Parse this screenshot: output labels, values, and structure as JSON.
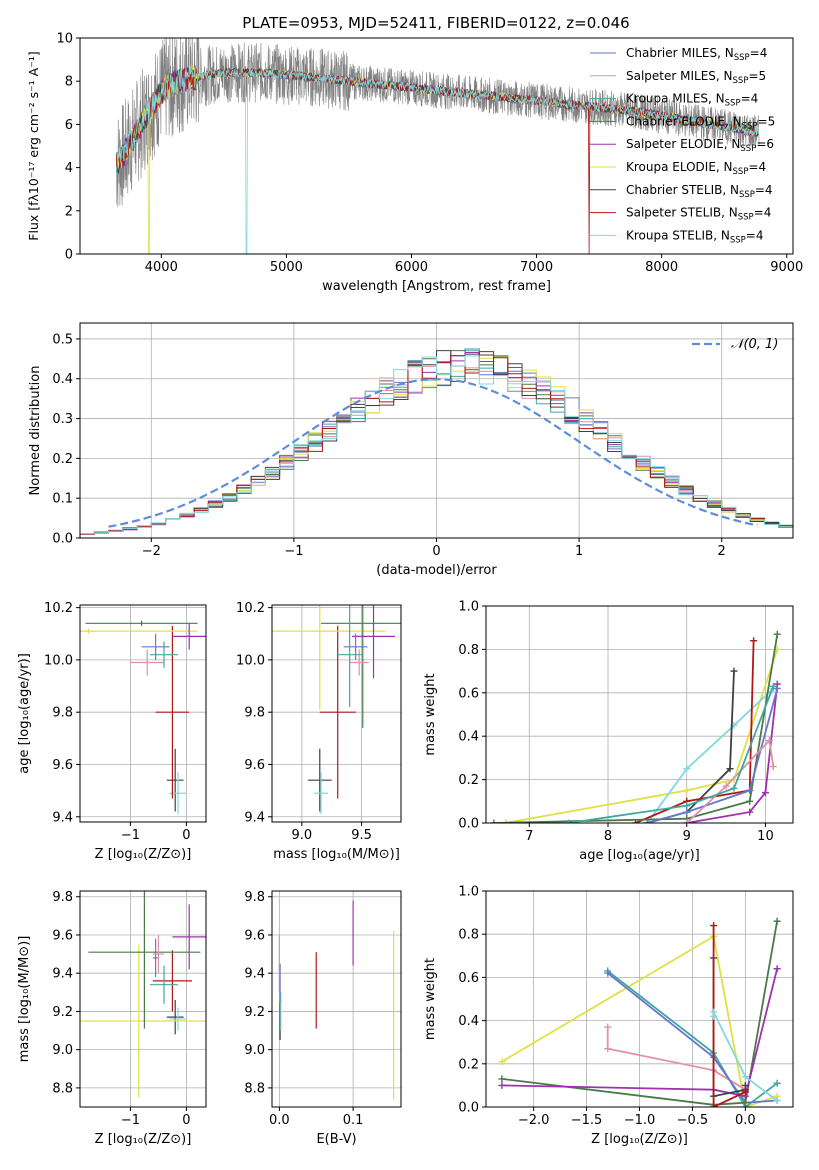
{
  "figure": {
    "title": "PLATE=0953, MJD=52411, FIBERID=0122, z=0.046",
    "model_colors": [
      "#6677cc",
      "#e090a8",
      "#40a8a0",
      "#4a7a4a",
      "#a030b0",
      "#e0e040",
      "#404040",
      "#b01818",
      "#80d8e0"
    ],
    "marker_colors": [
      "#808080",
      "#6699dd",
      "#e07820",
      "#e080b0",
      "#c8e050",
      "#ee8888"
    ]
  },
  "chart_data": [
    {
      "id": "spectrum",
      "type": "line",
      "title": "PLATE=0953, MJD=52411, FIBERID=0122, z=0.046",
      "xlabel": "wavelength [Angstrom, rest frame]",
      "ylabel": "Flux [fλ10⁻¹⁷ erg cm⁻² s⁻¹ A⁻¹]",
      "xlim": [
        3350,
        9050
      ],
      "ylim": [
        0,
        10
      ],
      "xticks": [
        4000,
        5000,
        6000,
        7000,
        8000,
        9000
      ],
      "yticks": [
        0,
        2,
        4,
        6,
        8,
        10
      ],
      "grid": false,
      "legend_placement": "top-right",
      "legend": [
        {
          "label": "Chabrier MILES, N",
          "sub": "SSP",
          "tail": "=4",
          "color": "#6677cc"
        },
        {
          "label": "Salpeter MILES, N",
          "sub": "SSP",
          "tail": "=5",
          "color": "#e090a8"
        },
        {
          "label": "Kroupa MILES, N",
          "sub": "SSP",
          "tail": "=4",
          "color": "#40a8a0"
        },
        {
          "label": "Chabrier ELODIE, N",
          "sub": "SSP",
          "tail": "=5",
          "color": "#4a7a4a"
        },
        {
          "label": "Salpeter ELODIE, N",
          "sub": "SSP",
          "tail": "=6",
          "color": "#a030b0"
        },
        {
          "label": "Kroupa ELODIE, N",
          "sub": "SSP",
          "tail": "=4",
          "color": "#e0e040"
        },
        {
          "label": "Chabrier STELIB, N",
          "sub": "SSP",
          "tail": "=4",
          "color": "#404040"
        },
        {
          "label": "Salpeter STELIB, N",
          "sub": "SSP",
          "tail": "=4",
          "color": "#b01818"
        },
        {
          "label": "Kroupa STELIB, N",
          "sub": "SSP",
          "tail": "=4",
          "color": "#80d8e0"
        }
      ],
      "continuum": {
        "x": [
          3640,
          3700,
          3800,
          3900,
          4000,
          4100,
          4200,
          4300,
          4400,
          4500,
          4600,
          4800,
          5000,
          5200,
          5500,
          6000,
          6500,
          7000,
          7300,
          7500,
          7800,
          8000,
          8200,
          8500,
          8780
        ],
        "y": [
          4.2,
          4.6,
          5.6,
          6.6,
          7.5,
          7.9,
          8.1,
          8.2,
          8.3,
          8.4,
          8.4,
          8.4,
          8.3,
          8.2,
          8.0,
          7.7,
          7.4,
          7.1,
          6.9,
          6.8,
          6.6,
          6.4,
          6.2,
          5.9,
          5.6
        ]
      },
      "data_noise_amplitude": 1.4,
      "model_cutoffs": [
        {
          "model": "Salpeter STELIB",
          "x": 7420
        },
        {
          "model": "Kroupa STELIB",
          "x": 4680
        },
        {
          "model": "Kroupa ELODIE",
          "x": 3900
        }
      ]
    },
    {
      "id": "residual_histogram",
      "type": "histogram",
      "xlabel": "(data-model)/error",
      "ylabel": "Normed distribution",
      "xlim": [
        -2.5,
        2.5
      ],
      "ylim": [
        0,
        0.54
      ],
      "xticks": [
        -2,
        -1,
        0,
        1,
        2
      ],
      "yticks": [
        0.0,
        0.1,
        0.2,
        0.3,
        0.4,
        0.5
      ],
      "grid": true,
      "bins": 50,
      "legend_placement": "top-right",
      "legend": [
        {
          "label": "𝒩(0, 1)",
          "style": "dashed",
          "color": "#5b8fd8"
        }
      ],
      "gaussian": {
        "mu": 0,
        "sigma": 1
      }
    },
    {
      "id": "age_vs_Z",
      "type": "errorbar",
      "xlabel": "Z [log₁₀(Z/Z⊙)]",
      "ylabel": "age  [log₁₀(age/yr)]",
      "xlim": [
        -1.9,
        0.35
      ],
      "ylim": [
        9.38,
        10.21
      ],
      "xticks": [
        -1,
        0
      ],
      "yticks": [
        9.4,
        9.6,
        9.8,
        10.0,
        10.2
      ],
      "grid": true,
      "points": [
        {
          "model": "Chabrier STELIB",
          "x": -0.2,
          "xerr": 0.15,
          "y": 9.54,
          "yerr": 0.12
        },
        {
          "model": "Kroupa STELIB",
          "x": -0.15,
          "xerr": 0.15,
          "y": 9.49,
          "yerr": 0.08
        },
        {
          "model": "Salpeter STELIB",
          "x": -0.25,
          "xerr": 0.3,
          "y": 9.8,
          "yerr": 0.33
        },
        {
          "model": "Kroupa ELODIE",
          "x": -1.75,
          "xerr": 1.95,
          "y": 10.11,
          "yerr": 0.01
        },
        {
          "model": "Chabrier ELODIE",
          "x": -0.8,
          "xerr": 1.0,
          "y": 10.14,
          "yerr": 0.01
        },
        {
          "model": "Salpeter ELODIE",
          "x": 0.05,
          "xerr": 0.3,
          "y": 10.09,
          "yerr": 0.05
        },
        {
          "model": "Chabrier MILES",
          "x": -0.55,
          "xerr": 0.25,
          "y": 10.05,
          "yerr": 0.05
        },
        {
          "model": "Salpeter MILES",
          "x": -0.7,
          "xerr": 0.3,
          "y": 9.99,
          "yerr": 0.05
        },
        {
          "model": "Kroupa MILES",
          "x": -0.4,
          "xerr": 0.25,
          "y": 10.02,
          "yerr": 0.05
        }
      ]
    },
    {
      "id": "age_vs_mass",
      "type": "errorbar",
      "xlabel": "mass [log₁₀(M/M⊙)]",
      "ylabel": "",
      "xlim": [
        8.75,
        9.83
      ],
      "ylim": [
        9.38,
        10.21
      ],
      "xticks": [
        9.0,
        9.5
      ],
      "yticks": [
        9.4,
        9.6,
        9.8,
        10.0,
        10.2
      ],
      "grid": true,
      "points": [
        {
          "model": "Chabrier STELIB",
          "x": 9.15,
          "xerr": 0.1,
          "y": 9.54,
          "yerr": 0.12
        },
        {
          "model": "Kroupa STELIB",
          "x": 9.16,
          "xerr": 0.06,
          "y": 9.49,
          "yerr": 0.08
        },
        {
          "model": "Salpeter STELIB",
          "x": 9.3,
          "xerr": 0.15,
          "y": 9.8,
          "yerr": 0.33
        },
        {
          "model": "Kroupa ELODIE",
          "x": 9.15,
          "xerr": 0.55,
          "y": 10.11,
          "yerr": 0.3
        },
        {
          "model": "Chabrier ELODIE",
          "x": 9.51,
          "xerr": 0.35,
          "y": 10.14,
          "yerr": 0.4
        },
        {
          "model": "Salpeter ELODIE",
          "x": 9.6,
          "xerr": 0.18,
          "y": 10.09,
          "yerr": 0.16
        },
        {
          "model": "Chabrier MILES",
          "x": 9.45,
          "xerr": 0.1,
          "y": 10.05,
          "yerr": 0.05
        },
        {
          "model": "Salpeter MILES",
          "x": 9.48,
          "xerr": 0.08,
          "y": 9.99,
          "yerr": 0.05
        },
        {
          "model": "Kroupa MILES",
          "x": 9.4,
          "xerr": 0.1,
          "y": 10.02,
          "yerr": 0.2
        }
      ]
    },
    {
      "id": "mass_weight_vs_age",
      "type": "line",
      "xlabel": "age  [log₁₀(age/yr)]",
      "ylabel": "mass weight",
      "xlim": [
        6.45,
        10.35
      ],
      "ylim": [
        0,
        1.0
      ],
      "xticks": [
        7,
        8,
        9,
        10
      ],
      "yticks": [
        0.0,
        0.2,
        0.4,
        0.6,
        0.8,
        1.0
      ],
      "grid": true,
      "series": [
        {
          "model": "Kroupa ELODIE",
          "x": [
            6.7,
            9.0,
            9.6,
            10.15
          ],
          "y": [
            0.0,
            0.15,
            0.2,
            0.8
          ]
        },
        {
          "model": "Kroupa STELIB",
          "x": [
            8.5,
            9.0,
            9.6,
            10.1
          ],
          "y": [
            0.0,
            0.25,
            0.45,
            0.62
          ]
        },
        {
          "model": "Chabrier STELIB",
          "x": [
            8.5,
            9.0,
            9.55,
            9.6
          ],
          "y": [
            0.0,
            0.05,
            0.25,
            0.7
          ]
        },
        {
          "model": "Salpeter STELIB",
          "x": [
            8.35,
            9.0,
            9.8,
            9.85
          ],
          "y": [
            0.0,
            0.1,
            0.15,
            0.84
          ]
        },
        {
          "model": "Chabrier ELODIE",
          "x": [
            6.55,
            9.0,
            9.8,
            10.15
          ],
          "y": [
            0.0,
            0.02,
            0.1,
            0.87
          ]
        },
        {
          "model": "Salpeter ELODIE",
          "x": [
            9.0,
            9.8,
            10.0,
            10.15
          ],
          "y": [
            0.0,
            0.05,
            0.14,
            0.64
          ]
        },
        {
          "model": "Chabrier MILES",
          "x": [
            8.5,
            9.0,
            9.8,
            10.15
          ],
          "y": [
            0.0,
            0.05,
            0.15,
            0.62
          ]
        },
        {
          "model": "Salpeter MILES",
          "x": [
            9.0,
            9.5,
            10.05,
            10.1
          ],
          "y": [
            0.0,
            0.17,
            0.38,
            0.26
          ]
        },
        {
          "model": "Kroupa MILES",
          "x": [
            7.5,
            9.0,
            9.6,
            10.1
          ],
          "y": [
            0.0,
            0.08,
            0.16,
            0.63
          ]
        }
      ]
    },
    {
      "id": "mass_vs_Z",
      "type": "errorbar",
      "xlabel": "Z [log₁₀(Z/Z⊙)]",
      "ylabel": "mass [log₁₀(M/M⊙)]",
      "xlim": [
        -1.9,
        0.35
      ],
      "ylim": [
        8.7,
        9.83
      ],
      "xticks": [
        -1,
        0
      ],
      "yticks": [
        8.8,
        9.0,
        9.2,
        9.4,
        9.6,
        9.8
      ],
      "grid": true,
      "points": [
        {
          "model": "Chabrier STELIB",
          "x": -0.2,
          "xerr": 0.15,
          "y": 9.17,
          "yerr": 0.09
        },
        {
          "model": "Kroupa STELIB",
          "x": -0.15,
          "xerr": 0.15,
          "y": 9.16,
          "yerr": 0.06
        },
        {
          "model": "Salpeter STELIB",
          "x": -0.25,
          "xerr": 0.35,
          "y": 9.36,
          "yerr": 0.16
        },
        {
          "model": "Kroupa ELODIE",
          "x": -0.85,
          "xerr": 1.2,
          "y": 9.15,
          "yerr": 0.4
        },
        {
          "model": "Chabrier ELODIE",
          "x": -0.75,
          "xerr": 1.0,
          "y": 9.51,
          "yerr": 0.4
        },
        {
          "model": "Salpeter ELODIE",
          "x": 0.05,
          "xerr": 0.3,
          "y": 9.59,
          "yerr": 0.17
        },
        {
          "model": "Chabrier MILES",
          "x": -0.55,
          "xerr": 0.05,
          "y": 9.48,
          "yerr": 0.1
        },
        {
          "model": "Salpeter MILES",
          "x": -0.5,
          "xerr": 0.1,
          "y": 9.5,
          "yerr": 0.1
        },
        {
          "model": "Kroupa MILES",
          "x": -0.4,
          "xerr": 0.25,
          "y": 9.34,
          "yerr": 0.1
        }
      ]
    },
    {
      "id": "mass_vs_EBV",
      "type": "errorbar",
      "xlabel": "E(B-V)",
      "ylabel": "",
      "xlim": [
        -0.01,
        0.165
      ],
      "ylim": [
        8.7,
        9.83
      ],
      "xticks": [
        0.0,
        0.1
      ],
      "yticks": [
        8.8,
        9.0,
        9.2,
        9.4,
        9.6,
        9.8
      ],
      "grid": true,
      "points": [
        {
          "model": "Chabrier STELIB",
          "x": 0.001,
          "xerr": 0.0,
          "y": 9.15,
          "yerr": 0.1
        },
        {
          "model": "Kroupa STELIB",
          "x": 0.002,
          "xerr": 0.0,
          "y": 9.2,
          "yerr": 0.1
        },
        {
          "model": "Salpeter STELIB",
          "x": 0.05,
          "xerr": 0.0,
          "y": 9.31,
          "yerr": 0.2
        },
        {
          "model": "Kroupa ELODIE",
          "x": 0.155,
          "xerr": 0.0,
          "y": 9.18,
          "yerr": 0.44
        },
        {
          "model": "Salpeter ELODIE",
          "x": 0.1,
          "xerr": 0.0,
          "y": 9.61,
          "yerr": 0.17
        },
        {
          "model": "Salpeter MILES",
          "x": 0.0,
          "xerr": 0.0,
          "y": 9.45,
          "yerr": 0.15
        },
        {
          "model": "Chabrier MILES",
          "x": 0.001,
          "xerr": 0.0,
          "y": 9.35,
          "yerr": 0.1
        }
      ]
    },
    {
      "id": "mass_weight_vs_Z",
      "type": "line",
      "xlabel": "Z [log₁₀(Z/Z⊙)]",
      "ylabel": "mass weight",
      "xlim": [
        -2.45,
        0.45
      ],
      "ylim": [
        0,
        1.0
      ],
      "xticks": [
        -2.0,
        -1.5,
        -1.0,
        -0.5,
        0.0
      ],
      "yticks": [
        0.0,
        0.2,
        0.4,
        0.6,
        0.8,
        1.0
      ],
      "grid": true,
      "series": [
        {
          "model": "Kroupa ELODIE",
          "x": [
            -2.3,
            -0.3,
            0.0,
            0.3
          ],
          "y": [
            0.21,
            0.79,
            0.0,
            0.05
          ]
        },
        {
          "model": "Kroupa MILES",
          "x": [
            -1.3,
            -0.3,
            0.0,
            0.3
          ],
          "y": [
            0.63,
            0.25,
            0.0,
            0.11
          ]
        },
        {
          "model": "Salpeter MILES",
          "x": [
            -1.3,
            -1.3,
            -0.3,
            0.0
          ],
          "y": [
            0.37,
            0.27,
            0.17,
            0.08
          ]
        },
        {
          "model": "Chabrier MILES",
          "x": [
            -1.3,
            -0.3,
            0.0,
            0.3
          ],
          "y": [
            0.62,
            0.23,
            0.02,
            0.03
          ]
        },
        {
          "model": "Chabrier ELODIE",
          "x": [
            -2.3,
            -0.3,
            0.0,
            0.3
          ],
          "y": [
            0.13,
            0.01,
            0.02,
            0.86
          ]
        },
        {
          "model": "Salpeter ELODIE",
          "x": [
            -2.3,
            -0.3,
            0.0,
            0.3
          ],
          "y": [
            0.1,
            0.08,
            0.05,
            0.64
          ]
        },
        {
          "model": "Chabrier STELIB",
          "x": [
            -0.3,
            -0.3,
            0.0,
            0.0
          ],
          "y": [
            0.69,
            0.05,
            0.08,
            0.1
          ]
        },
        {
          "model": "Salpeter STELIB",
          "x": [
            -0.3,
            -0.3,
            0.0,
            0.0
          ],
          "y": [
            0.84,
            0.0,
            0.07,
            0.08
          ]
        },
        {
          "model": "Kroupa STELIB",
          "x": [
            -0.3,
            -0.3,
            0.0,
            0.3
          ],
          "y": [
            0.42,
            0.44,
            0.14,
            0.03
          ]
        }
      ]
    }
  ]
}
